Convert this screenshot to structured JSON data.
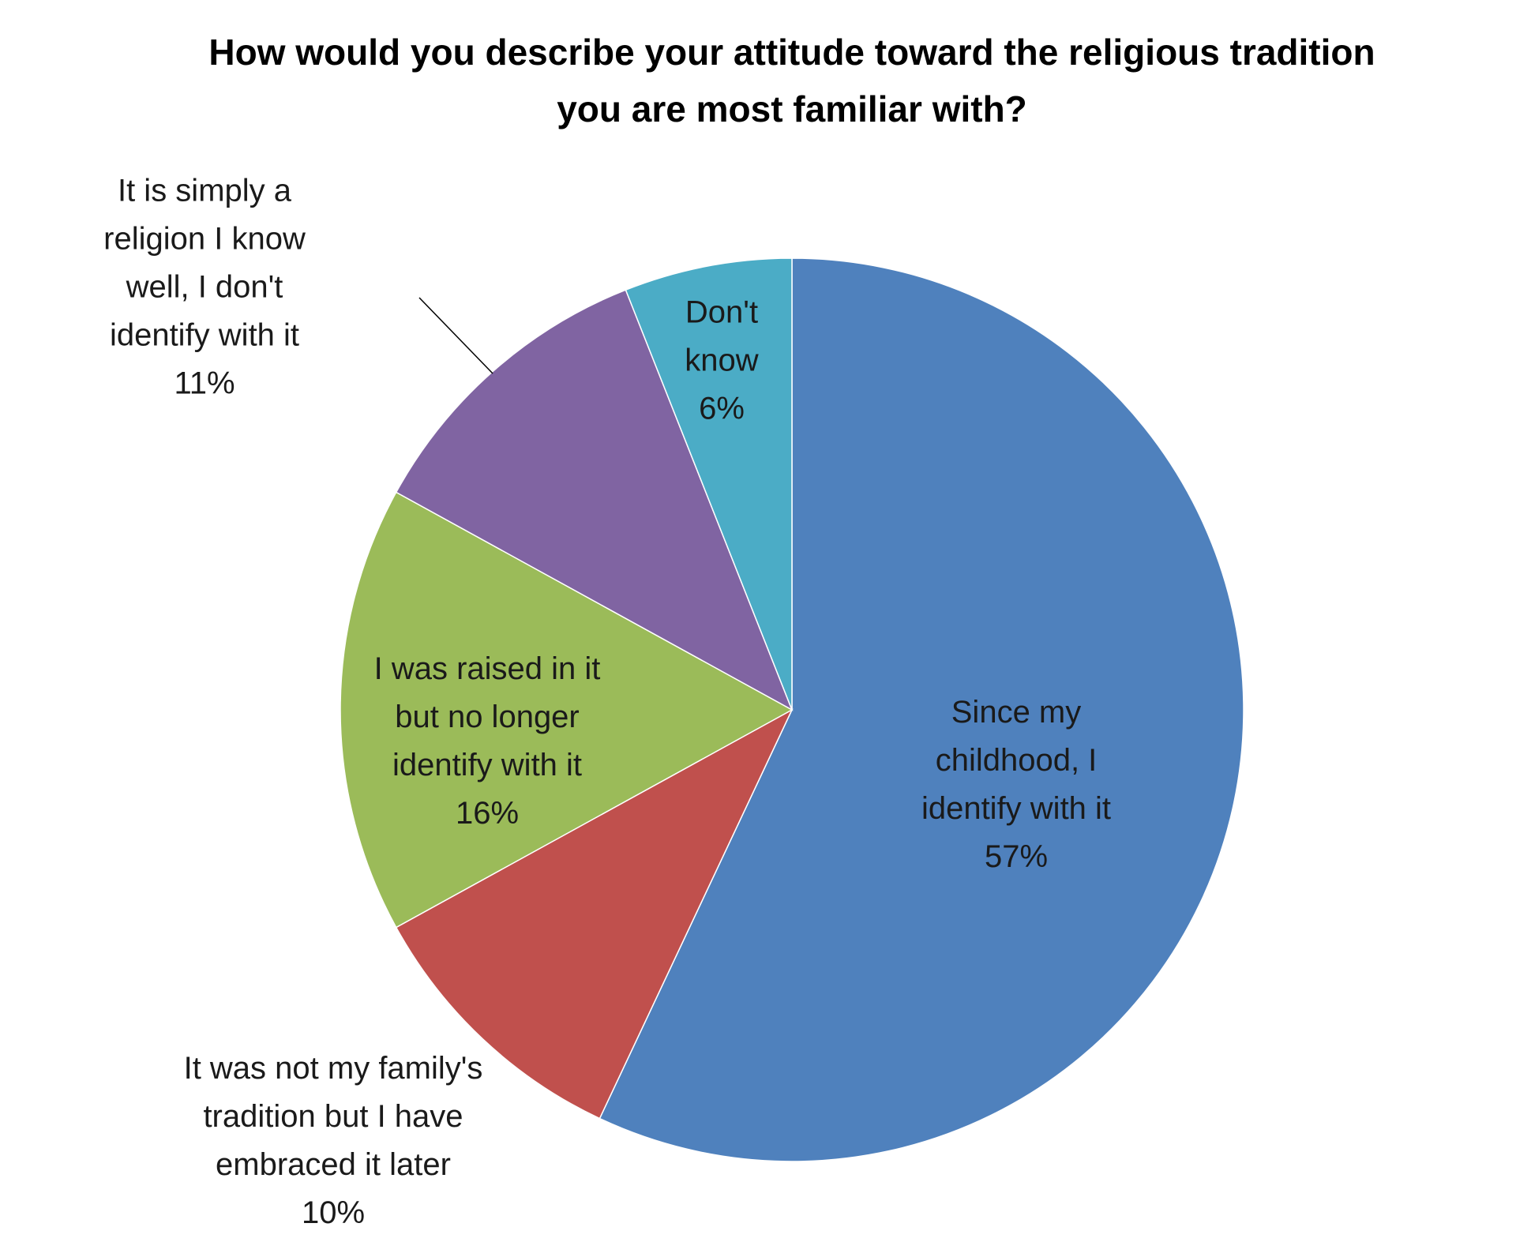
{
  "chart_data": {
    "type": "pie",
    "title": "How would you describe your attitude toward the religious tradition you are most familiar with?",
    "categories": [
      "Since my childhood, I identify with it",
      "It was not my family's tradition but I have embraced it later",
      "I was raised in it but no longer identify with it",
      "It is simply a religion I know well, I don't identify with it",
      "Don't know"
    ],
    "values": [
      57,
      10,
      16,
      11,
      6
    ],
    "value_labels": [
      "57%",
      "10%",
      "16%",
      "11%",
      "6%"
    ],
    "colors": [
      "#4f81bd",
      "#c0504d",
      "#9bbb59",
      "#8064a2",
      "#4bacc6"
    ]
  }
}
